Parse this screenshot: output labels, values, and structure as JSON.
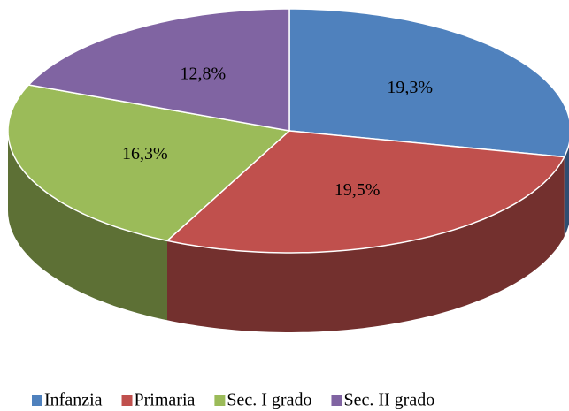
{
  "chart_data": {
    "type": "pie",
    "categories": [
      "Infanzia",
      "Primaria",
      "Sec. I grado",
      "Sec. II grado"
    ],
    "values": [
      19.3,
      19.5,
      16.3,
      12.8
    ],
    "value_labels": [
      "19,3%",
      "19,5%",
      "16,3%",
      "12,8%"
    ],
    "colors": [
      "#4f81bd",
      "#c0504d",
      "#9bbb59",
      "#8064a2"
    ],
    "legend": "bottom"
  }
}
